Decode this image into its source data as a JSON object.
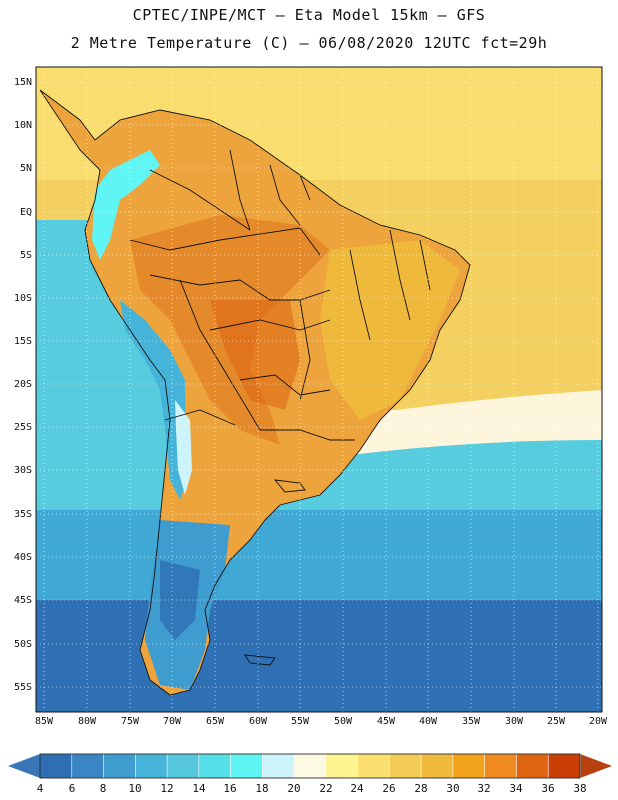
{
  "title_line1": "CPTEC/INPE/MCT –  Eta Model 15km – GFS",
  "title_line2": "2 Metre Temperature (C) – 06/08/2020 12UTC fct=29h",
  "lat_labels": [
    "15N",
    "10N",
    "5N",
    "EQ",
    "5S",
    "10S",
    "15S",
    "20S",
    "25S",
    "30S",
    "35S",
    "40S",
    "45S",
    "50S",
    "55S"
  ],
  "lon_labels": [
    "85W",
    "80W",
    "75W",
    "70W",
    "65W",
    "60W",
    "55W",
    "50W",
    "45W",
    "40W",
    "35W",
    "30W",
    "25W",
    "20W"
  ],
  "colorbar": {
    "labels": [
      "4",
      "6",
      "8",
      "10",
      "12",
      "14",
      "16",
      "18",
      "20",
      "22",
      "24",
      "26",
      "28",
      "30",
      "32",
      "34",
      "36",
      "38"
    ],
    "colors": [
      "#2e6fb3",
      "#3a86c4",
      "#3f9ccf",
      "#46b4d9",
      "#55c8de",
      "#55dfe6",
      "#5ff5f5",
      "#cdf4fb",
      "#fdf9e2",
      "#fdf38f",
      "#fbe070",
      "#f2cc55",
      "#efb93b",
      "#f3a31b",
      "#ef8a1e",
      "#de6412",
      "#c93f06"
    ],
    "low_color": "#3a75b8",
    "high_color": "#b8400e"
  },
  "map_colors": {
    "warm_ocean_north": "#f9dd6e",
    "ocean_yellow": "#f4d060",
    "amazon": "#e58a2a",
    "interior_orange": "#eea43c",
    "pale": "#fdf5dc",
    "cool_ocean": "#58ccdf",
    "mid_ocean": "#3fa8d5",
    "south_ocean": "#2f70b4",
    "andes": "#5ff5f5",
    "border": "#111111"
  }
}
